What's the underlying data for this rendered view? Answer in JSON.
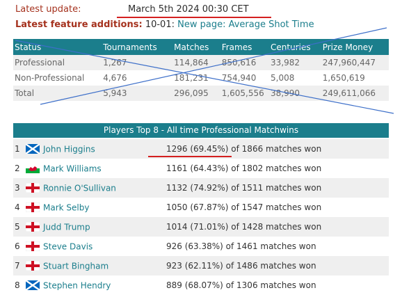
{
  "header": {
    "update_label": "Latest update:",
    "update_value": "March 5th 2024 00:30 CET",
    "feature_label": "Latest feature additions:",
    "feature_date": "10-01:",
    "feature_link": "New page: Average Shot Time"
  },
  "stats_table": {
    "headers": [
      "Status",
      "Tournaments",
      "Matches",
      "Frames",
      "Centuries",
      "Prize Money"
    ],
    "rows": [
      [
        "Professional",
        "1,267",
        "114,864",
        "850,616",
        "33,982",
        "247,960,447"
      ],
      [
        "Non-Professional",
        "4,676",
        "181,231",
        "754,940",
        "5,008",
        "1,650,619"
      ],
      [
        "Total",
        "5,943",
        "296,095",
        "1,605,556",
        "38,990",
        "249,611,066"
      ]
    ]
  },
  "top8": {
    "title": "Players Top 8 - All time Professional Matchwins",
    "players": [
      {
        "rank": "1",
        "flag": "scotland-flag",
        "name": "John Higgins",
        "wins": "1296 (69.45%) of 1866 matches won"
      },
      {
        "rank": "2",
        "flag": "wales-flag",
        "name": "Mark Williams",
        "wins": "1161 (64.43%) of 1802 matches won"
      },
      {
        "rank": "3",
        "flag": "england-flag",
        "name": "Ronnie O'Sullivan",
        "wins": "1132 (74.92%) of 1511 matches won"
      },
      {
        "rank": "4",
        "flag": "england-flag",
        "name": "Mark Selby",
        "wins": "1050 (67.87%) of 1547 matches won"
      },
      {
        "rank": "5",
        "flag": "england-flag",
        "name": "Judd Trump",
        "wins": "1014 (71.01%) of 1428 matches won"
      },
      {
        "rank": "6",
        "flag": "england-flag",
        "name": "Steve Davis",
        "wins": "926 (63.38%) of 1461 matches won"
      },
      {
        "rank": "7",
        "flag": "england-flag",
        "name": "Stuart Bingham",
        "wins": "923 (62.11%) of 1486 matches won"
      },
      {
        "rank": "8",
        "flag": "scotland-flag",
        "name": "Stephen Hendry",
        "wins": "889 (68.07%) of 1306 matches won"
      }
    ]
  },
  "colors": {
    "accent_teal": "#1b7e8c",
    "label_red": "#a5321e",
    "annotation_red": "#d42020",
    "annotation_blue": "#3d6fc9"
  }
}
